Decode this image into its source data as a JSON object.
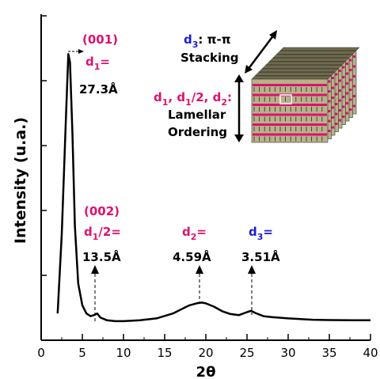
{
  "chart_data": {
    "type": "line",
    "xlabel": "2θ",
    "ylabel": "Intensity (u.a.)",
    "xlim": [
      0,
      40
    ],
    "ylim": [
      0,
      1
    ],
    "xticks": [
      "0",
      "5",
      "10",
      "15",
      "20",
      "25",
      "30",
      "35",
      "40"
    ],
    "y_ticks_labeled": false,
    "grid": false,
    "series": [
      {
        "x": [
          2.0,
          2.5,
          3.0,
          3.3,
          3.5,
          3.8,
          4.1,
          4.5,
          5.0,
          5.5,
          6.0,
          6.5,
          6.8,
          7.2,
          8.0,
          9.0,
          10.0,
          12.0,
          14.0,
          16.0,
          17.0,
          18.0,
          19.0,
          19.5,
          20.0,
          21.0,
          22.0,
          23.0,
          24.0,
          25.0,
          25.5,
          26.0,
          27.0,
          28.0,
          30.0,
          33.0,
          35.0,
          38.0,
          40.0
        ],
        "y": [
          0.04,
          0.33,
          0.75,
          0.99,
          0.96,
          0.7,
          0.36,
          0.15,
          0.07,
          0.04,
          0.03,
          0.035,
          0.04,
          0.025,
          0.015,
          0.012,
          0.012,
          0.015,
          0.022,
          0.04,
          0.055,
          0.07,
          0.078,
          0.08,
          0.077,
          0.065,
          0.048,
          0.038,
          0.034,
          0.045,
          0.05,
          0.042,
          0.03,
          0.027,
          0.022,
          0.017,
          0.016,
          0.015,
          0.015
        ]
      }
    ],
    "annotations": {
      "peak1": {
        "index_label": "(001)",
        "d_label": "d",
        "d_sub": "1",
        "d_tail": "=",
        "value": "27.3Å"
      },
      "peak2": {
        "index_label": "(002)",
        "d_label": "d",
        "d_sub": "1",
        "d_tail": "/2=",
        "value": "13.5Å"
      },
      "peak3": {
        "d_label": "d",
        "d_sub": "2",
        "d_tail": "=",
        "value": "4.59Å"
      },
      "peak4": {
        "d_label": "d",
        "d_sub": "3",
        "d_tail": "=",
        "value": "3.51Å"
      },
      "stacking_d": "d",
      "stacking_sub": "3",
      "stacking_text": ": π-π",
      "stacking_word": "Stacking",
      "lamellar_d1": "d",
      "lamellar_sub1": "1",
      "lamellar_sep1": ", ",
      "lamellar_d2": "d",
      "lamellar_sub2": "1",
      "lamellar_sep2": "/2, ",
      "lamellar_d3": "d",
      "lamellar_sub3": "2",
      "lamellar_tail": ":",
      "lamellar_word1": "Lamellar",
      "lamellar_word2": "Ordering"
    },
    "colors": {
      "line": "#000000",
      "index_pink": "#e0106e",
      "d3_blue": "#1a1ad6",
      "stack_layer": "#b7b28a",
      "stack_stripe": "#e0106e"
    }
  }
}
